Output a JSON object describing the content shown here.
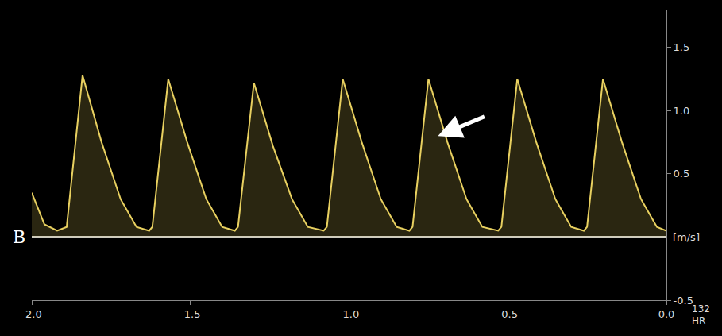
{
  "chart_data": {
    "type": "line",
    "panel_label": "B",
    "y_unit_label": "[m/s]",
    "corner_texts": [
      "132",
      "HR"
    ],
    "color": "#e8d060",
    "grid": false,
    "x": [
      -2.0,
      -1.96,
      -1.92,
      -1.89,
      -1.84,
      -1.78,
      -1.72,
      -1.67,
      -1.63,
      -1.62,
      -1.57,
      -1.51,
      -1.45,
      -1.4,
      -1.36,
      -1.35,
      -1.3,
      -1.24,
      -1.18,
      -1.13,
      -1.08,
      -1.07,
      -1.02,
      -0.96,
      -0.9,
      -0.85,
      -0.81,
      -0.8,
      -0.75,
      -0.69,
      -0.63,
      -0.58,
      -0.53,
      -0.52,
      -0.47,
      -0.41,
      -0.35,
      -0.3,
      -0.26,
      -0.25,
      -0.2,
      -0.14,
      -0.08,
      -0.03,
      0.0
    ],
    "values": [
      0.35,
      0.1,
      0.05,
      0.08,
      1.28,
      0.75,
      0.3,
      0.08,
      0.05,
      0.08,
      1.25,
      0.75,
      0.3,
      0.08,
      0.05,
      0.08,
      1.22,
      0.72,
      0.3,
      0.08,
      0.05,
      0.08,
      1.25,
      0.75,
      0.3,
      0.08,
      0.05,
      0.08,
      1.25,
      0.75,
      0.3,
      0.08,
      0.05,
      0.08,
      1.25,
      0.75,
      0.3,
      0.08,
      0.05,
      0.08,
      1.25,
      0.75,
      0.3,
      0.08,
      0.05
    ],
    "xlim": [
      -2.0,
      0.0
    ],
    "xticks": [
      {
        "value": -2.0,
        "label": "-2.0"
      },
      {
        "value": -1.5,
        "label": "-1.5"
      },
      {
        "value": -1.0,
        "label": "-1.0"
      },
      {
        "value": -0.5,
        "label": "-0.5"
      },
      {
        "value": 0.0,
        "label": "0.0"
      }
    ],
    "ylim": [
      -0.5,
      1.8
    ],
    "yticks": [
      -0.5,
      0.5,
      {
        "value": 1.0,
        "label": "1.0"
      },
      1.5
    ]
  }
}
